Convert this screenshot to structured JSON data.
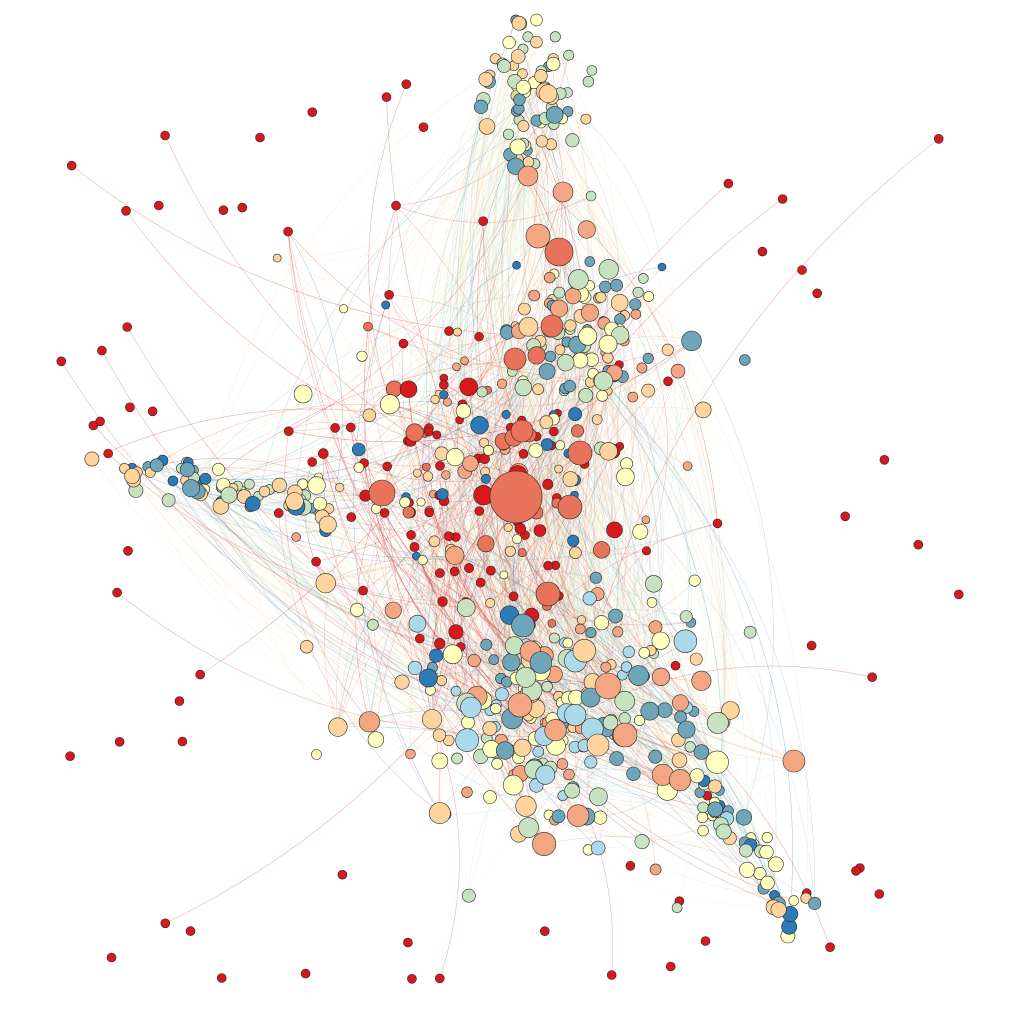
{
  "figure": {
    "kind": "network-graph",
    "layout": "force-directed",
    "background": "#ffffff",
    "node_outline": "#2a2a2a",
    "edge_style": "curved, semi-transparent, colored by source node",
    "legend": "none",
    "title": "",
    "labels_shown": false
  },
  "palette": {
    "c0": "#2c7bb6",
    "c1": "#6fa5b8",
    "c2": "#abd9e9",
    "c3": "#c7e2c0",
    "c4": "#ffffbf",
    "c5": "#fdd49e",
    "c6": "#f4a582",
    "c7": "#e8735a",
    "c8": "#d7191c"
  },
  "clusters": [
    {
      "id": "top",
      "color_mix": [
        "c1",
        "c3",
        "c4",
        "c5"
      ],
      "count": 70
    },
    {
      "id": "upper-right",
      "color_mix": [
        "c1",
        "c3",
        "c4",
        "c5",
        "c6"
      ],
      "count": 95
    },
    {
      "id": "center",
      "color_mix": [
        "c0",
        "c4",
        "c5",
        "c6",
        "c7",
        "c8"
      ],
      "count": 150
    },
    {
      "id": "left",
      "color_mix": [
        "c0",
        "c1",
        "c3",
        "c4",
        "c5"
      ],
      "count": 60
    },
    {
      "id": "bottom",
      "color_mix": [
        "c1",
        "c2",
        "c3",
        "c4",
        "c5",
        "c6"
      ],
      "count": 210
    },
    {
      "id": "lower-right-tail",
      "color_mix": [
        "c0",
        "c1",
        "c3",
        "c4",
        "c5"
      ],
      "count": 45
    }
  ],
  "isolated_nodes_color": "c8",
  "isolated_nodes_count": 60
}
